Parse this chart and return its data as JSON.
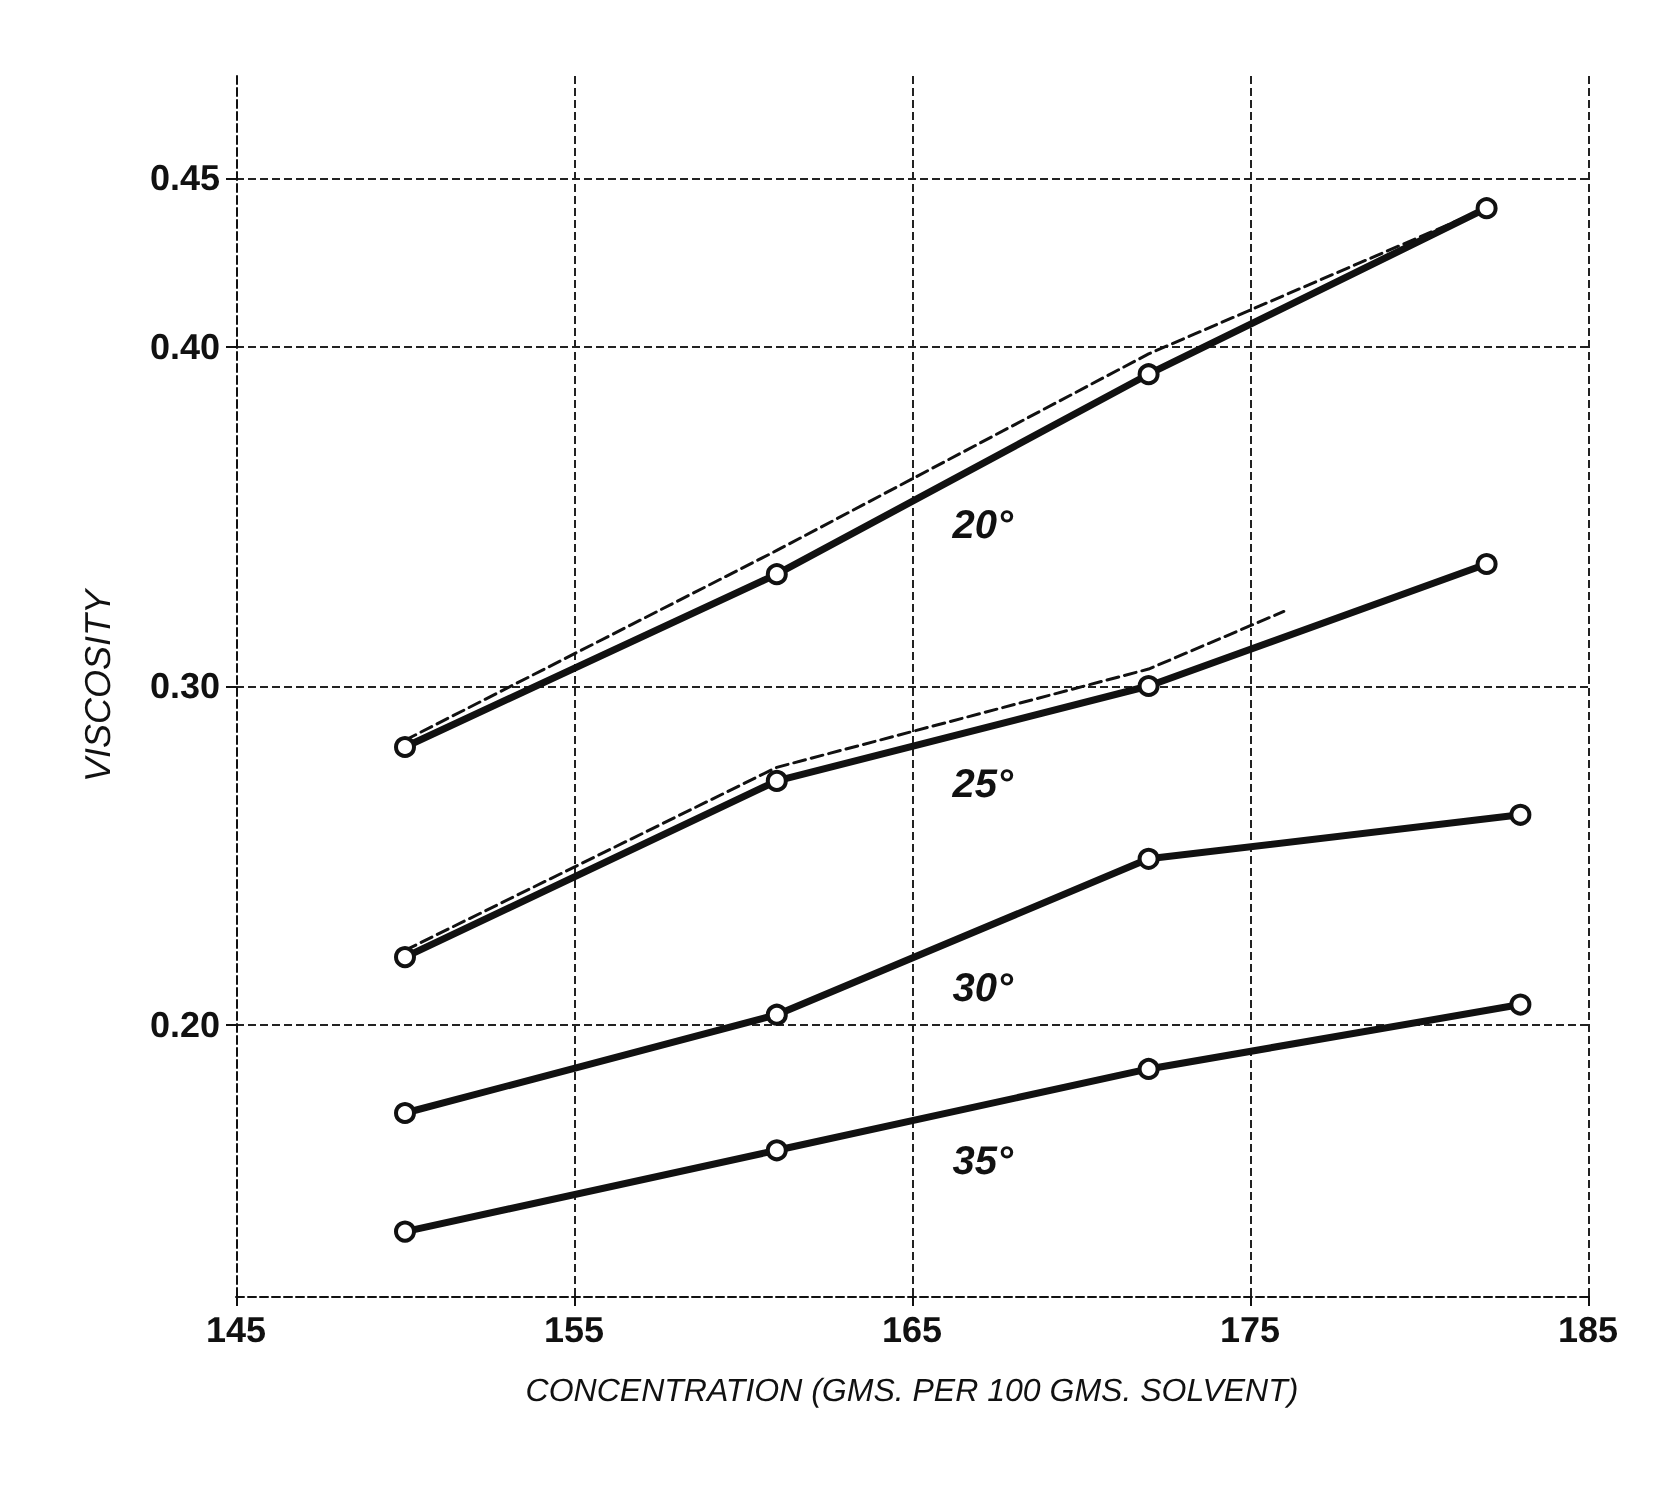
{
  "chart_data": {
    "type": "line",
    "xlabel": "CONCENTRATION (GMS. PER 100 GMS. SOLVENT)",
    "ylabel": "VISCOSITY",
    "xlim": [
      145,
      185
    ],
    "xticks": [
      145,
      155,
      165,
      175,
      185
    ],
    "ylim": [
      0.12,
      0.48
    ],
    "yticks": [
      {
        "value": 0.2,
        "label": "0.20"
      },
      {
        "value": 0.3,
        "label": "0.30"
      },
      {
        "value": 0.4,
        "label": "0.40"
      },
      {
        "value": 0.45,
        "label": "0.45"
      }
    ],
    "grid": true,
    "marker": "circle",
    "line_style": "solid",
    "series": [
      {
        "name": "20°",
        "color": "#111111",
        "x": [
          150,
          161,
          172,
          182
        ],
        "values": [
          0.282,
          0.333,
          0.392,
          0.441
        ]
      },
      {
        "name": "25°",
        "color": "#111111",
        "x": [
          150,
          161,
          172,
          182
        ],
        "values": [
          0.22,
          0.272,
          0.3,
          0.336
        ]
      },
      {
        "name": "30°",
        "color": "#111111",
        "x": [
          150,
          161,
          172,
          183
        ],
        "values": [
          0.174,
          0.203,
          0.249,
          0.262
        ]
      },
      {
        "name": "35°",
        "color": "#111111",
        "x": [
          150,
          161,
          172,
          183
        ],
        "values": [
          0.139,
          0.163,
          0.187,
          0.206
        ]
      },
      {
        "color": "#111111",
        "x": [
          150,
          161,
          172,
          182
        ],
        "values": [
          0.284,
          0.34,
          0.398,
          0.441
        ],
        "line_style": "dashed",
        "marker": "none"
      },
      {
        "color": "#111111",
        "x": [
          150,
          161,
          172,
          176
        ],
        "values": [
          0.222,
          0.276,
          0.305,
          0.322
        ],
        "line_style": "dashed",
        "marker": "none"
      }
    ]
  }
}
